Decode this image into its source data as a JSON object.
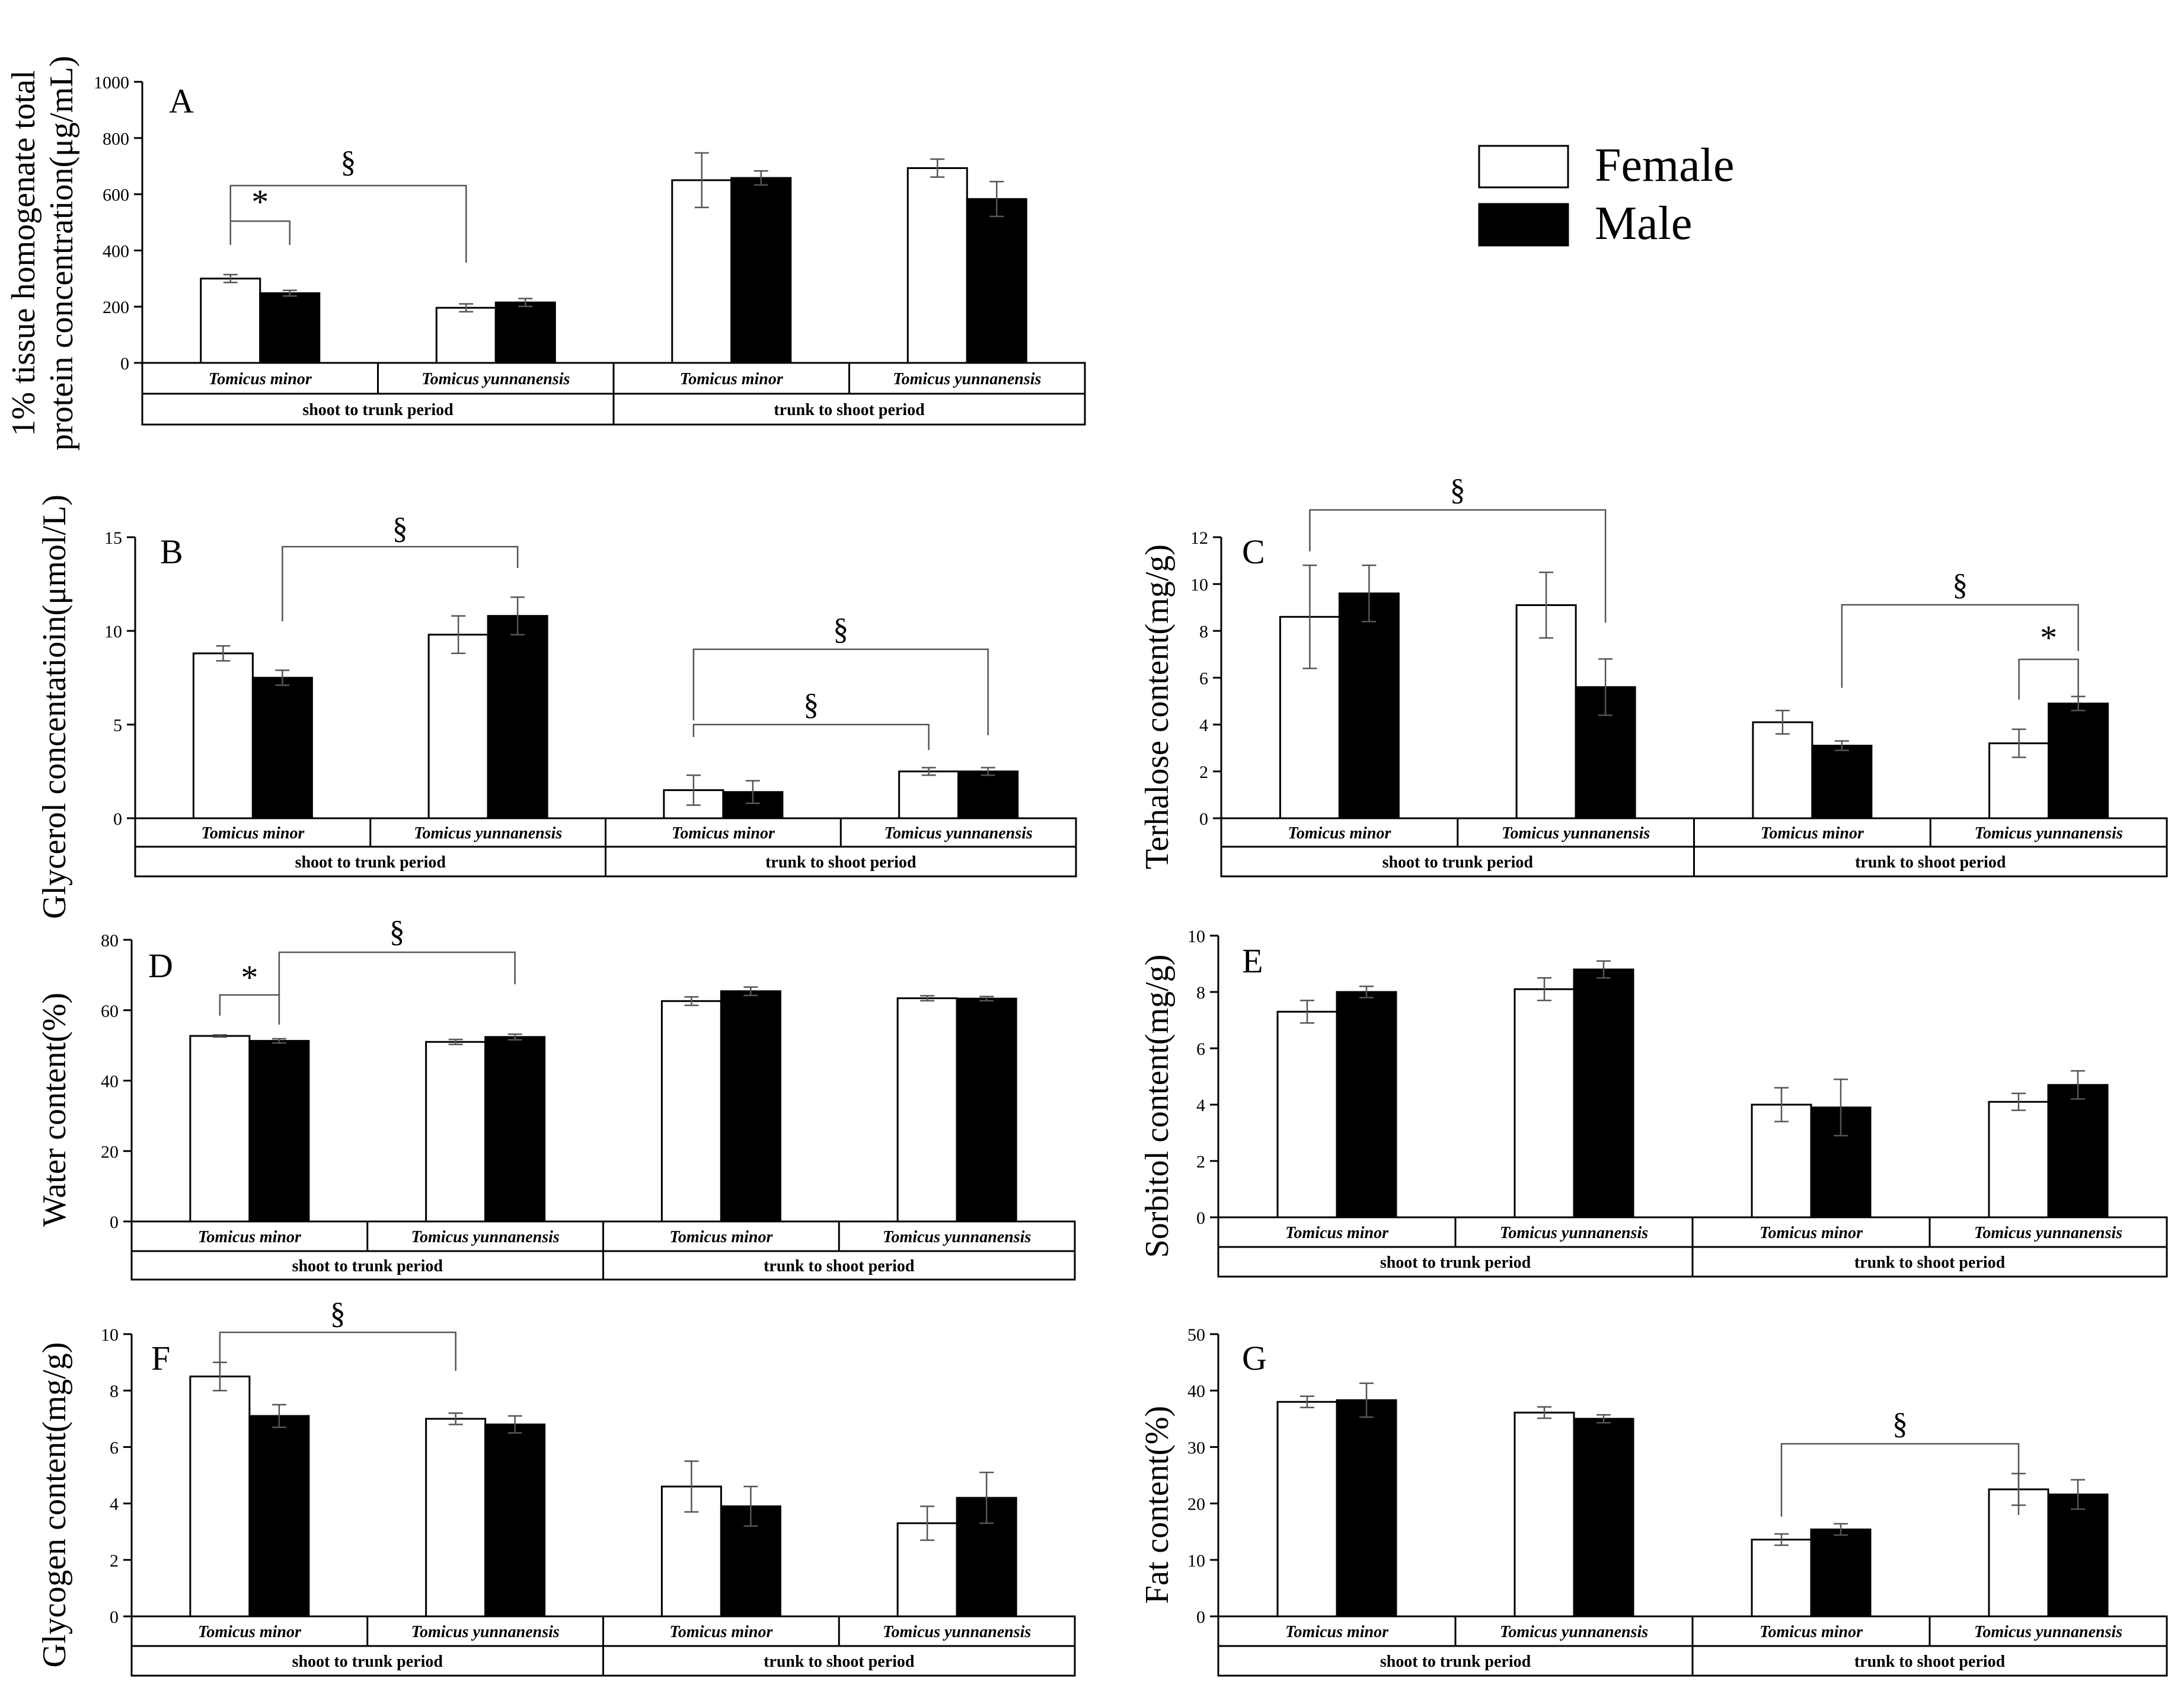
{
  "legend": [
    {
      "label": "Female",
      "color": "#ffffff"
    },
    {
      "label": "Male",
      "color": "#000000"
    }
  ],
  "chart_data": [
    {
      "id": "A",
      "type": "bar",
      "panel_label": "A",
      "ylabel_lines": [
        "1% tissue homogenate total",
        "protein concentration(μg/mL)"
      ],
      "ylim": [
        0,
        1000
      ],
      "yticks": [
        0,
        200,
        400,
        600,
        800,
        1000
      ],
      "categories": [
        "Tomicus minor",
        "Tomicus yunnanensis",
        "Tomicus minor",
        "Tomicus yunnanensis"
      ],
      "periods": [
        "shoot to trunk period",
        "trunk to shoot period"
      ],
      "series": [
        {
          "name": "Female",
          "values": [
            300,
            196,
            650,
            693
          ],
          "errors": [
            14,
            14,
            97,
            32
          ]
        },
        {
          "name": "Male",
          "values": [
            248,
            215,
            658,
            583
          ],
          "errors": [
            10,
            14,
            25,
            62
          ]
        }
      ],
      "annotations": [
        {
          "symbol": "§",
          "from": 0,
          "to": 2
        },
        {
          "symbol": "*",
          "from": 0,
          "to": 1
        }
      ]
    },
    {
      "id": "B",
      "type": "bar",
      "panel_label": "B",
      "ylabel_lines": [
        "Glycerol concentatioin(μmol/L)"
      ],
      "ylim": [
        0,
        15
      ],
      "yticks": [
        0,
        5,
        10,
        15
      ],
      "categories": [
        "Tomicus minor",
        "Tomicus yunnanensis",
        "Tomicus minor",
        "Tomicus yunnanensis"
      ],
      "periods": [
        "shoot to trunk period",
        "trunk to shoot period"
      ],
      "series": [
        {
          "name": "Female",
          "values": [
            8.8,
            9.8,
            1.5,
            2.5
          ],
          "errors": [
            0.4,
            1.0,
            0.8,
            0.2
          ]
        },
        {
          "name": "Male",
          "values": [
            7.5,
            10.8,
            1.4,
            2.5
          ],
          "errors": [
            0.4,
            1.0,
            0.6,
            0.2
          ]
        }
      ],
      "annotations": [
        {
          "symbol": "§",
          "from": 1,
          "to": 3
        },
        {
          "symbol": "§",
          "from": 4,
          "to": 7
        },
        {
          "symbol": "§",
          "from": 4,
          "to": 6
        }
      ]
    },
    {
      "id": "C",
      "type": "bar",
      "panel_label": "C",
      "ylabel_lines": [
        "Terhalose content(mg/g)"
      ],
      "ylim": [
        0,
        12
      ],
      "yticks": [
        0,
        2,
        4,
        6,
        8,
        10,
        12
      ],
      "categories": [
        "Tomicus minor",
        "Tomicus yunnanensis",
        "Tomicus minor",
        "Tomicus yunnanensis"
      ],
      "periods": [
        "shoot to trunk period",
        "trunk to shoot period"
      ],
      "series": [
        {
          "name": "Female",
          "values": [
            8.6,
            9.1,
            4.1,
            3.2
          ],
          "errors": [
            2.2,
            1.4,
            0.5,
            0.6
          ]
        },
        {
          "name": "Male",
          "values": [
            9.6,
            5.6,
            3.1,
            4.9
          ],
          "errors": [
            1.2,
            1.2,
            0.2,
            0.3
          ]
        }
      ],
      "annotations": [
        {
          "symbol": "§",
          "from": 0,
          "to": 3
        },
        {
          "symbol": "§",
          "from": 5,
          "to": 7
        },
        {
          "symbol": "*",
          "from": 6,
          "to": 7
        }
      ]
    },
    {
      "id": "D",
      "type": "bar",
      "panel_label": "D",
      "ylabel_lines": [
        "Water content(%)"
      ],
      "ylim": [
        0,
        80
      ],
      "yticks": [
        0,
        20,
        40,
        60,
        80
      ],
      "categories": [
        "Tomicus minor",
        "Tomicus yunnanensis",
        "Tomicus minor",
        "Tomicus yunnanensis"
      ],
      "periods": [
        "shoot to trunk period",
        "trunk to shoot period"
      ],
      "series": [
        {
          "name": "Female",
          "values": [
            52.7,
            51.0,
            62.6,
            63.4
          ],
          "errors": [
            0.3,
            0.7,
            1.2,
            0.7
          ]
        },
        {
          "name": "Male",
          "values": [
            51.3,
            52.4,
            65.4,
            63.3
          ],
          "errors": [
            0.6,
            0.8,
            1.2,
            0.6
          ]
        }
      ],
      "annotations": [
        {
          "symbol": "*",
          "from": 0,
          "to": 1
        },
        {
          "symbol": "§",
          "from": 1,
          "to": 3
        }
      ]
    },
    {
      "id": "E",
      "type": "bar",
      "panel_label": "E",
      "ylabel_lines": [
        "Sorbitol content(mg/g)"
      ],
      "ylim": [
        0,
        10
      ],
      "yticks": [
        0,
        2,
        4,
        6,
        8,
        10
      ],
      "categories": [
        "Tomicus minor",
        "Tomicus yunnanensis",
        "Tomicus minor",
        "Tomicus yunnanensis"
      ],
      "periods": [
        "shoot to trunk period",
        "trunk to shoot period"
      ],
      "series": [
        {
          "name": "Female",
          "values": [
            7.3,
            8.1,
            4.0,
            4.1
          ],
          "errors": [
            0.4,
            0.4,
            0.6,
            0.3
          ]
        },
        {
          "name": "Male",
          "values": [
            8.0,
            8.8,
            3.9,
            4.7
          ],
          "errors": [
            0.2,
            0.3,
            1.0,
            0.5
          ]
        }
      ],
      "annotations": []
    },
    {
      "id": "F",
      "type": "bar",
      "panel_label": "F",
      "ylabel_lines": [
        "Glycogen content(mg/g)"
      ],
      "ylim": [
        0,
        10
      ],
      "yticks": [
        0,
        2,
        4,
        6,
        8,
        10
      ],
      "categories": [
        "Tomicus minor",
        "Tomicus yunnanensis",
        "Tomicus minor",
        "Tomicus yunnanensis"
      ],
      "periods": [
        "shoot to trunk period",
        "trunk to shoot period"
      ],
      "series": [
        {
          "name": "Female",
          "values": [
            8.5,
            7.0,
            4.6,
            3.3
          ],
          "errors": [
            0.5,
            0.2,
            0.9,
            0.6
          ]
        },
        {
          "name": "Male",
          "values": [
            7.1,
            6.8,
            3.9,
            4.2
          ],
          "errors": [
            0.4,
            0.3,
            0.7,
            0.9
          ]
        }
      ],
      "annotations": [
        {
          "symbol": "§",
          "from": 0,
          "to": 2
        }
      ]
    },
    {
      "id": "G",
      "type": "bar",
      "panel_label": "G",
      "ylabel_lines": [
        "Fat content(%)"
      ],
      "ylim": [
        0,
        50
      ],
      "yticks": [
        0,
        10,
        20,
        30,
        40,
        50
      ],
      "categories": [
        "Tomicus minor",
        "Tomicus yunnanensis",
        "Tomicus minor",
        "Tomicus yunnanensis"
      ],
      "periods": [
        "shoot to trunk period",
        "trunk to shoot period"
      ],
      "series": [
        {
          "name": "Female",
          "values": [
            38.0,
            36.1,
            13.6,
            22.5
          ],
          "errors": [
            1.0,
            1.0,
            1.0,
            2.8
          ]
        },
        {
          "name": "Male",
          "values": [
            38.3,
            35.0,
            15.4,
            21.6
          ],
          "errors": [
            3.0,
            0.7,
            1.0,
            2.6
          ]
        }
      ],
      "annotations": [
        {
          "symbol": "§",
          "from": 4,
          "to": 6
        }
      ]
    }
  ]
}
